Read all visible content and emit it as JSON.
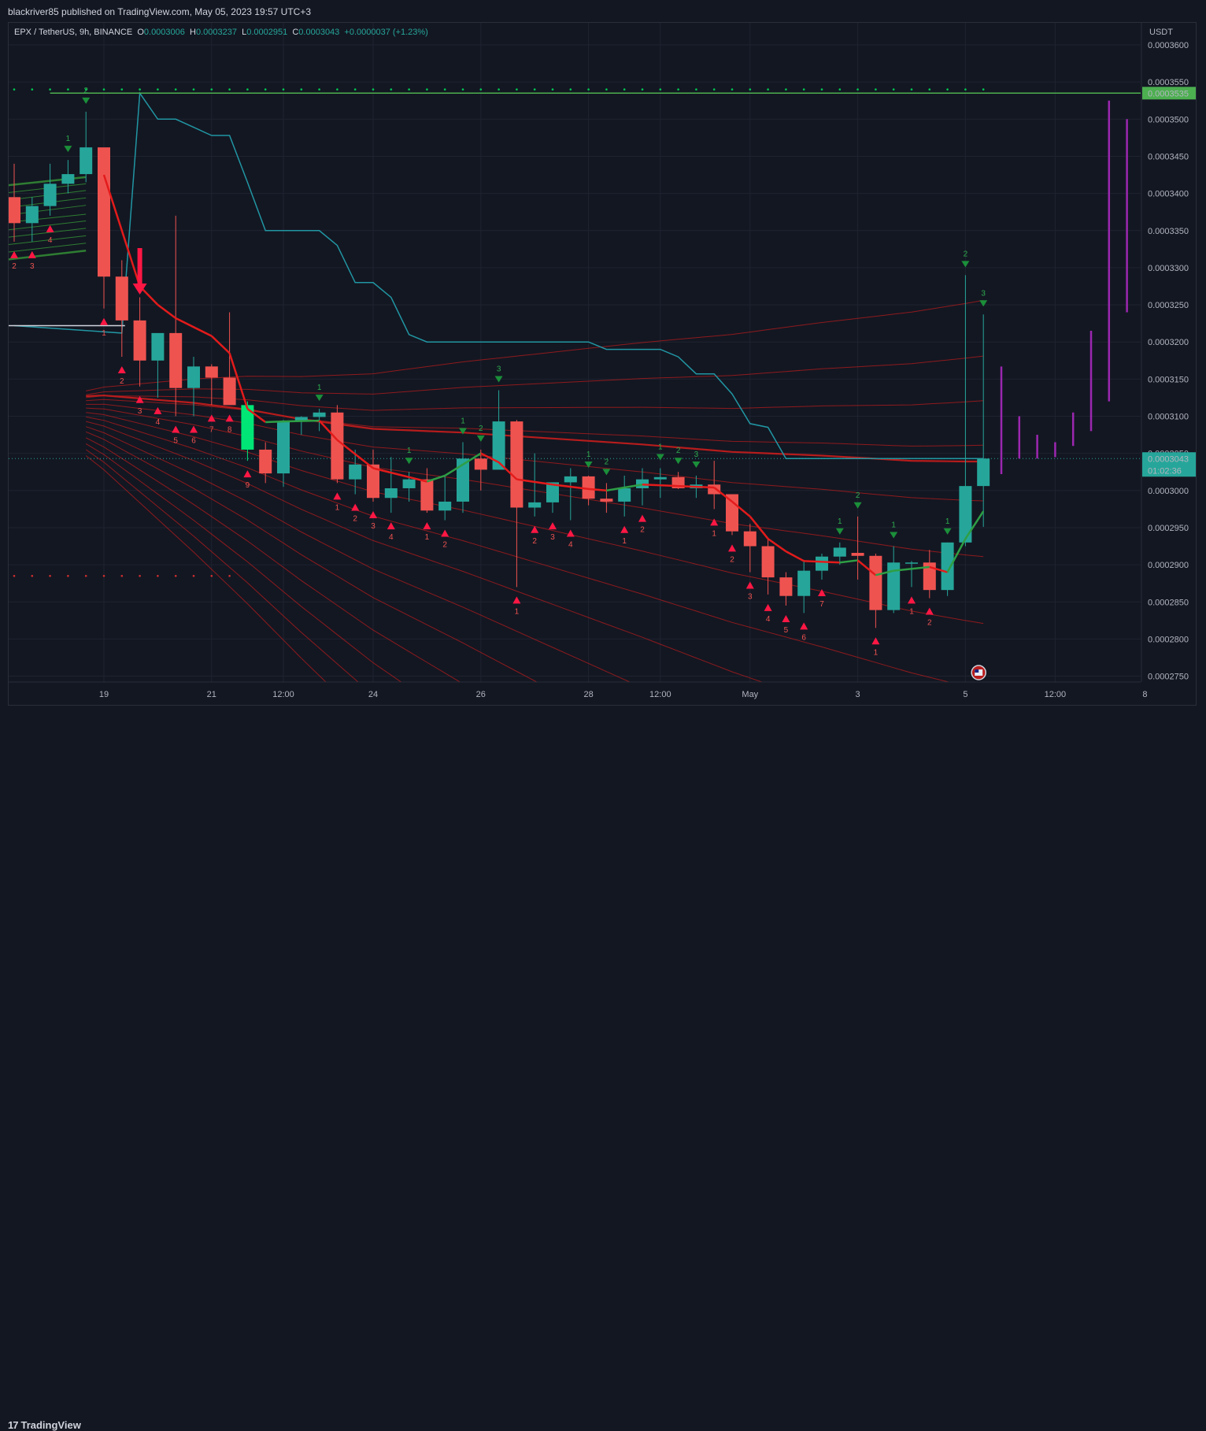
{
  "header": {
    "publisher": "blackriver85 published on TradingView.com, May 05, 2023 19:57 UTC+3"
  },
  "legend": {
    "symbol": "EPX / TetherUS, 9h, BINANCE",
    "o_label": "O",
    "o_val": "0.0003006",
    "h_label": "H",
    "h_val": "0.0003237",
    "l_label": "L",
    "l_val": "0.0002951",
    "c_label": "C",
    "c_val": "0.0003043",
    "change": "+0.0000037 (+1.23%)"
  },
  "footer": {
    "brand_logo": "17",
    "brand": "TradingView"
  },
  "colors": {
    "up": "#26a69a",
    "down": "#ef5350",
    "ribbon": "#b71c1c",
    "sl_line": "#2196a3",
    "resistance": "#4caf50",
    "purple": "#9c27b0",
    "buy": "#00c853",
    "sell": "#ff1744"
  },
  "chart_data": {
    "type": "candlestick",
    "title": "EPX / TetherUS, 9h, BINANCE",
    "currency_label": "USDT",
    "ylim": [
      0.0002745,
      0.000362
    ],
    "y_ticks": [
      "0.0003600",
      "0.0003550",
      "0.0003500",
      "0.0003450",
      "0.0003400",
      "0.0003350",
      "0.0003300",
      "0.0003250",
      "0.0003200",
      "0.0003150",
      "0.0003100",
      "0.0003050",
      "0.0003000",
      "0.0002950",
      "0.0002900",
      "0.0002850",
      "0.0002800",
      "0.0002750"
    ],
    "x_ticks": [
      "19",
      "21",
      "12:00",
      "24",
      "26",
      "28",
      "12:00",
      "May",
      "3",
      "5",
      "12:00",
      "8"
    ],
    "x_tick_bar_index": [
      5,
      11,
      15,
      20,
      26,
      32,
      36,
      41,
      47,
      53,
      58,
      63
    ],
    "candles": [
      [
        0.0003395,
        0.000344,
        0.0003335,
        0.000336
      ],
      [
        0.000336,
        0.0003395,
        0.0003335,
        0.0003383
      ],
      [
        0.0003383,
        0.000344,
        0.000337,
        0.0003413
      ],
      [
        0.0003413,
        0.0003445,
        0.00034,
        0.0003426
      ],
      [
        0.0003426,
        0.000351,
        0.0003415,
        0.0003462
      ],
      [
        0.0003462,
        0.000346,
        0.0003245,
        0.0003288
      ],
      [
        0.0003288,
        0.000331,
        0.000318,
        0.0003229
      ],
      [
        0.0003229,
        0.000326,
        0.000314,
        0.0003175
      ],
      [
        0.0003175,
        0.000321,
        0.0003125,
        0.0003212
      ],
      [
        0.0003212,
        0.000337,
        0.00031,
        0.0003138
      ],
      [
        0.0003138,
        0.000318,
        0.00031,
        0.0003167
      ],
      [
        0.0003167,
        0.000317,
        0.0003115,
        0.0003152
      ],
      [
        0.0003152,
        0.000324,
        0.0003115,
        0.0003115
      ],
      [
        0.0003115,
        0.000312,
        0.000304,
        0.0003055
      ],
      [
        0.0003055,
        0.0003065,
        0.000301,
        0.0003023
      ],
      [
        0.0003023,
        0.0003095,
        0.0003005,
        0.0003093
      ],
      [
        0.0003093,
        0.00031,
        0.0003075,
        0.0003099
      ],
      [
        0.0003099,
        0.000311,
        0.000308,
        0.0003105
      ],
      [
        0.0003105,
        0.0003115,
        0.000301,
        0.0003015
      ],
      [
        0.0003015,
        0.0003055,
        0.0002995,
        0.0003035
      ],
      [
        0.0003035,
        0.0003055,
        0.0002985,
        0.000299
      ],
      [
        0.000299,
        0.0003045,
        0.000297,
        0.0003003
      ],
      [
        0.0003003,
        0.0003025,
        0.0002985,
        0.0003015
      ],
      [
        0.0003015,
        0.000303,
        0.000297,
        0.0002973
      ],
      [
        0.0002973,
        0.000302,
        0.000296,
        0.0002985
      ],
      [
        0.0002985,
        0.0003065,
        0.000297,
        0.0003043
      ],
      [
        0.0003043,
        0.0003055,
        0.0003,
        0.0003028
      ],
      [
        0.0003028,
        0.0003135,
        0.000303,
        0.0003093
      ],
      [
        0.0003093,
        0.0003095,
        0.000287,
        0.0002977
      ],
      [
        0.0002977,
        0.000305,
        0.0002965,
        0.0002984
      ],
      [
        0.0002984,
        0.000301,
        0.000297,
        0.0003011
      ],
      [
        0.0003011,
        0.000303,
        0.000296,
        0.0003019
      ],
      [
        0.0003019,
        0.000302,
        0.000298,
        0.0002989
      ],
      [
        0.0002989,
        0.000301,
        0.000297,
        0.0002985
      ],
      [
        0.0002985,
        0.000302,
        0.0002965,
        0.0003003
      ],
      [
        0.0003003,
        0.000303,
        0.000298,
        0.0003015
      ],
      [
        0.0003015,
        0.000303,
        0.000299,
        0.0003018
      ],
      [
        0.0003018,
        0.0003025,
        0.0003002,
        0.0003003
      ],
      [
        0.0003003,
        0.000302,
        0.000299,
        0.0003008
      ],
      [
        0.0003008,
        0.000304,
        0.0002975,
        0.0002995
      ],
      [
        0.0002995,
        0.0002995,
        0.000294,
        0.0002945
      ],
      [
        0.0002945,
        0.0002955,
        0.000289,
        0.0002925
      ],
      [
        0.0002925,
        0.0002935,
        0.000286,
        0.0002883
      ],
      [
        0.0002883,
        0.000289,
        0.0002845,
        0.0002858
      ],
      [
        0.0002858,
        0.0002905,
        0.0002835,
        0.0002892
      ],
      [
        0.0002892,
        0.0002915,
        0.000288,
        0.0002911
      ],
      [
        0.0002911,
        0.000293,
        0.00029,
        0.0002923
      ],
      [
        0.0002916,
        0.0002965,
        0.000288,
        0.0002912
      ],
      [
        0.0002912,
        0.0002915,
        0.0002815,
        0.0002839
      ],
      [
        0.0002839,
        0.0002925,
        0.0002835,
        0.0002903
      ],
      [
        0.0002903,
        0.0002905,
        0.000287,
        0.0002903
      ],
      [
        0.0002903,
        0.000292,
        0.0002855,
        0.0002866
      ],
      [
        0.0002866,
        0.000293,
        0.0002858,
        0.000293
      ],
      [
        0.000293,
        0.000329,
        0.0002925,
        0.0003006
      ],
      [
        0.0003006,
        0.0003237,
        0.0002951,
        0.0003043
      ]
    ],
    "ribbon_offsets": [
      -2.1e-06,
      -1.5e-06,
      -1e-06,
      -6e-07,
      -2e-07,
      3e-07,
      8e-07,
      1.4e-06,
      2e-06,
      2.6e-06,
      3.3e-06,
      4e-06,
      4.8e-06,
      5.6e-06,
      6.4e-06,
      7.2e-06
    ],
    "ribbon_widths": [
      2.2,
      1.0,
      1.0,
      1.0,
      1.0,
      1.0,
      1.0,
      1.0,
      1.0,
      1.0,
      1.0,
      1.0,
      1.0,
      1.0,
      1.0,
      1.0
    ],
    "ribbon_base": [
      [
        0,
        0.0003115
      ],
      [
        5,
        0.000312
      ],
      [
        8,
        0.0003114
      ],
      [
        10,
        0.000311
      ],
      [
        13,
        0.0003101
      ],
      [
        16,
        0.0003088
      ],
      [
        20,
        0.0003075
      ],
      [
        25,
        0.000307
      ],
      [
        30,
        0.0003062
      ],
      [
        35,
        0.0003054
      ],
      [
        40,
        0.0003044
      ],
      [
        45,
        0.0003039
      ],
      [
        50,
        0.0003032
      ],
      [
        53,
        0.0003031
      ],
      [
        54,
        0.0003031
      ]
    ],
    "stop_line": [
      [
        0,
        0.0003222
      ],
      [
        6,
        0.0003212
      ],
      [
        7,
        0.0003535
      ],
      [
        8,
        0.00035
      ],
      [
        9,
        0.00035
      ],
      [
        11,
        0.0003478
      ],
      [
        12,
        0.0003478
      ],
      [
        13,
        0.0003415
      ],
      [
        14,
        0.000335
      ],
      [
        17,
        0.000335
      ],
      [
        18,
        0.000333
      ],
      [
        19,
        0.000328
      ],
      [
        20,
        0.000328
      ],
      [
        21,
        0.000326
      ],
      [
        22,
        0.000321
      ],
      [
        23,
        0.00032
      ],
      [
        32,
        0.00032
      ],
      [
        33,
        0.000319
      ],
      [
        36,
        0.000319
      ],
      [
        37,
        0.000318
      ],
      [
        38,
        0.0003157
      ],
      [
        39,
        0.0003157
      ],
      [
        40,
        0.000313
      ],
      [
        41,
        0.000309
      ],
      [
        42,
        0.0003085
      ],
      [
        43,
        0.0003043
      ],
      [
        54,
        0.0003043
      ]
    ],
    "short_ema": [
      [
        5,
        0.0003425
      ],
      [
        7,
        0.0003275
      ],
      [
        8,
        0.000325
      ],
      [
        9,
        0.0003232
      ],
      [
        11,
        0.0003208
      ],
      [
        12,
        0.0003185
      ],
      [
        13,
        0.000311
      ],
      [
        14,
        0.0003092
      ],
      [
        15,
        0.0003093
      ],
      [
        17,
        0.0003094
      ],
      [
        18,
        0.0003068
      ],
      [
        20,
        0.000303
      ],
      [
        22,
        0.0003018
      ],
      [
        23,
        0.0003012
      ],
      [
        24,
        0.000302
      ],
      [
        25,
        0.0003035
      ],
      [
        26,
        0.000305
      ],
      [
        27,
        0.0003038
      ],
      [
        28,
        0.0003015
      ],
      [
        30,
        0.0003008
      ],
      [
        32,
        0.0003002
      ],
      [
        33,
        0.0003
      ],
      [
        34,
        0.0003004
      ],
      [
        35,
        0.0003008
      ],
      [
        37,
        0.0003006
      ],
      [
        39,
        0.0003004
      ],
      [
        40,
        0.0002985
      ],
      [
        41,
        0.0002965
      ],
      [
        42,
        0.0002935
      ],
      [
        43,
        0.0002918
      ],
      [
        44,
        0.0002905
      ],
      [
        46,
        0.0002903
      ],
      [
        47,
        0.0002906
      ],
      [
        48,
        0.0002886
      ],
      [
        49,
        0.0002892
      ],
      [
        51,
        0.0002897
      ],
      [
        52,
        0.000289
      ],
      [
        53,
        0.0002935
      ],
      [
        54,
        0.0002972
      ]
    ],
    "green_bands": {
      "start_bar": 0,
      "end_bar": 4,
      "left_vals": [
        0.0003411,
        0.0003401,
        0.0003391,
        0.0003381,
        0.0003371,
        0.0003361,
        0.0003351,
        0.0003341,
        0.0003331,
        0.0003321,
        0.0003311
      ],
      "right_vals": [
        0.0003422,
        0.0003413,
        0.0003404,
        0.0003394,
        0.0003384,
        0.0003372,
        0.0003363,
        0.0003353,
        0.0003343,
        0.0003333,
        0.0003323
      ]
    },
    "bright_bar_index": 13,
    "resistance_level": 0.0003535,
    "resistance_label": "0.0003535",
    "left_level": {
      "price": 0.0003222,
      "from_bar": 0,
      "to_bar": 6
    },
    "last_price": 0.0003043,
    "last_price_label": "0.0003043",
    "countdown": "01:02:36",
    "purple_bars": [
      {
        "bar": 55,
        "low": 0.0003022,
        "high": 0.0003167
      },
      {
        "bar": 56,
        "low": 0.0003043,
        "high": 0.00031
      },
      {
        "bar": 57,
        "low": 0.0003043,
        "high": 0.0003075
      },
      {
        "bar": 58,
        "low": 0.0003045,
        "high": 0.0003065
      },
      {
        "bar": 59,
        "low": 0.000306,
        "high": 0.0003105
      },
      {
        "bar": 60,
        "low": 0.000308,
        "high": 0.0003215
      },
      {
        "bar": 61,
        "low": 0.000312,
        "high": 0.0003525
      },
      {
        "bar": 62,
        "low": 0.000324,
        "high": 0.00035
      }
    ],
    "dots_top": {
      "price": 0.000354,
      "from_bar": 0,
      "to_bar": 54
    },
    "dots_bottom": {
      "price": 0.0002885,
      "from_bar": 0,
      "to_bar": 12
    },
    "big_arrow_bar": 7,
    "sell_signals": [
      {
        "bar": 3,
        "label": "1"
      },
      {
        "bar": 4,
        "label": "2"
      },
      {
        "bar": 17,
        "label": "1"
      },
      {
        "bar": 22,
        "label": "1"
      },
      {
        "bar": 25,
        "label": "1"
      },
      {
        "bar": 26,
        "label": "2"
      },
      {
        "bar": 27,
        "label": "3"
      },
      {
        "bar": 32,
        "label": "1"
      },
      {
        "bar": 33,
        "label": "2"
      },
      {
        "bar": 36,
        "label": "1"
      },
      {
        "bar": 37,
        "label": "2"
      },
      {
        "bar": 38,
        "label": "3"
      },
      {
        "bar": 46,
        "label": "1"
      },
      {
        "bar": 47,
        "label": "2"
      },
      {
        "bar": 49,
        "label": "1"
      },
      {
        "bar": 52,
        "label": "1"
      },
      {
        "bar": 53,
        "label": "2"
      },
      {
        "bar": 54,
        "label": "3"
      }
    ],
    "buy_signals": [
      {
        "bar": 0,
        "label": "2"
      },
      {
        "bar": 1,
        "label": "3"
      },
      {
        "bar": 2,
        "label": "4"
      },
      {
        "bar": 5,
        "label": "1"
      },
      {
        "bar": 6,
        "label": "2"
      },
      {
        "bar": 7,
        "label": "3"
      },
      {
        "bar": 8,
        "label": "4"
      },
      {
        "bar": 9,
        "label": "5"
      },
      {
        "bar": 10,
        "label": "6"
      },
      {
        "bar": 11,
        "label": "7"
      },
      {
        "bar": 12,
        "label": "8"
      },
      {
        "bar": 13,
        "label": "9"
      },
      {
        "bar": 18,
        "label": "1"
      },
      {
        "bar": 19,
        "label": "2"
      },
      {
        "bar": 20,
        "label": "3"
      },
      {
        "bar": 21,
        "label": "4"
      },
      {
        "bar": 23,
        "label": "1"
      },
      {
        "bar": 24,
        "label": "2"
      },
      {
        "bar": 28,
        "label": "1"
      },
      {
        "bar": 29,
        "label": "2"
      },
      {
        "bar": 30,
        "label": "3"
      },
      {
        "bar": 31,
        "label": "4"
      },
      {
        "bar": 34,
        "label": "1"
      },
      {
        "bar": 35,
        "label": "2"
      },
      {
        "bar": 39,
        "label": "1"
      },
      {
        "bar": 40,
        "label": "2"
      },
      {
        "bar": 41,
        "label": "3"
      },
      {
        "bar": 42,
        "label": "4"
      },
      {
        "bar": 43,
        "label": "5"
      },
      {
        "bar": 44,
        "label": "6"
      },
      {
        "bar": 45,
        "label": "7"
      },
      {
        "bar": 48,
        "label": "1"
      },
      {
        "bar": 50,
        "label": "1"
      },
      {
        "bar": 51,
        "label": "2"
      }
    ]
  }
}
